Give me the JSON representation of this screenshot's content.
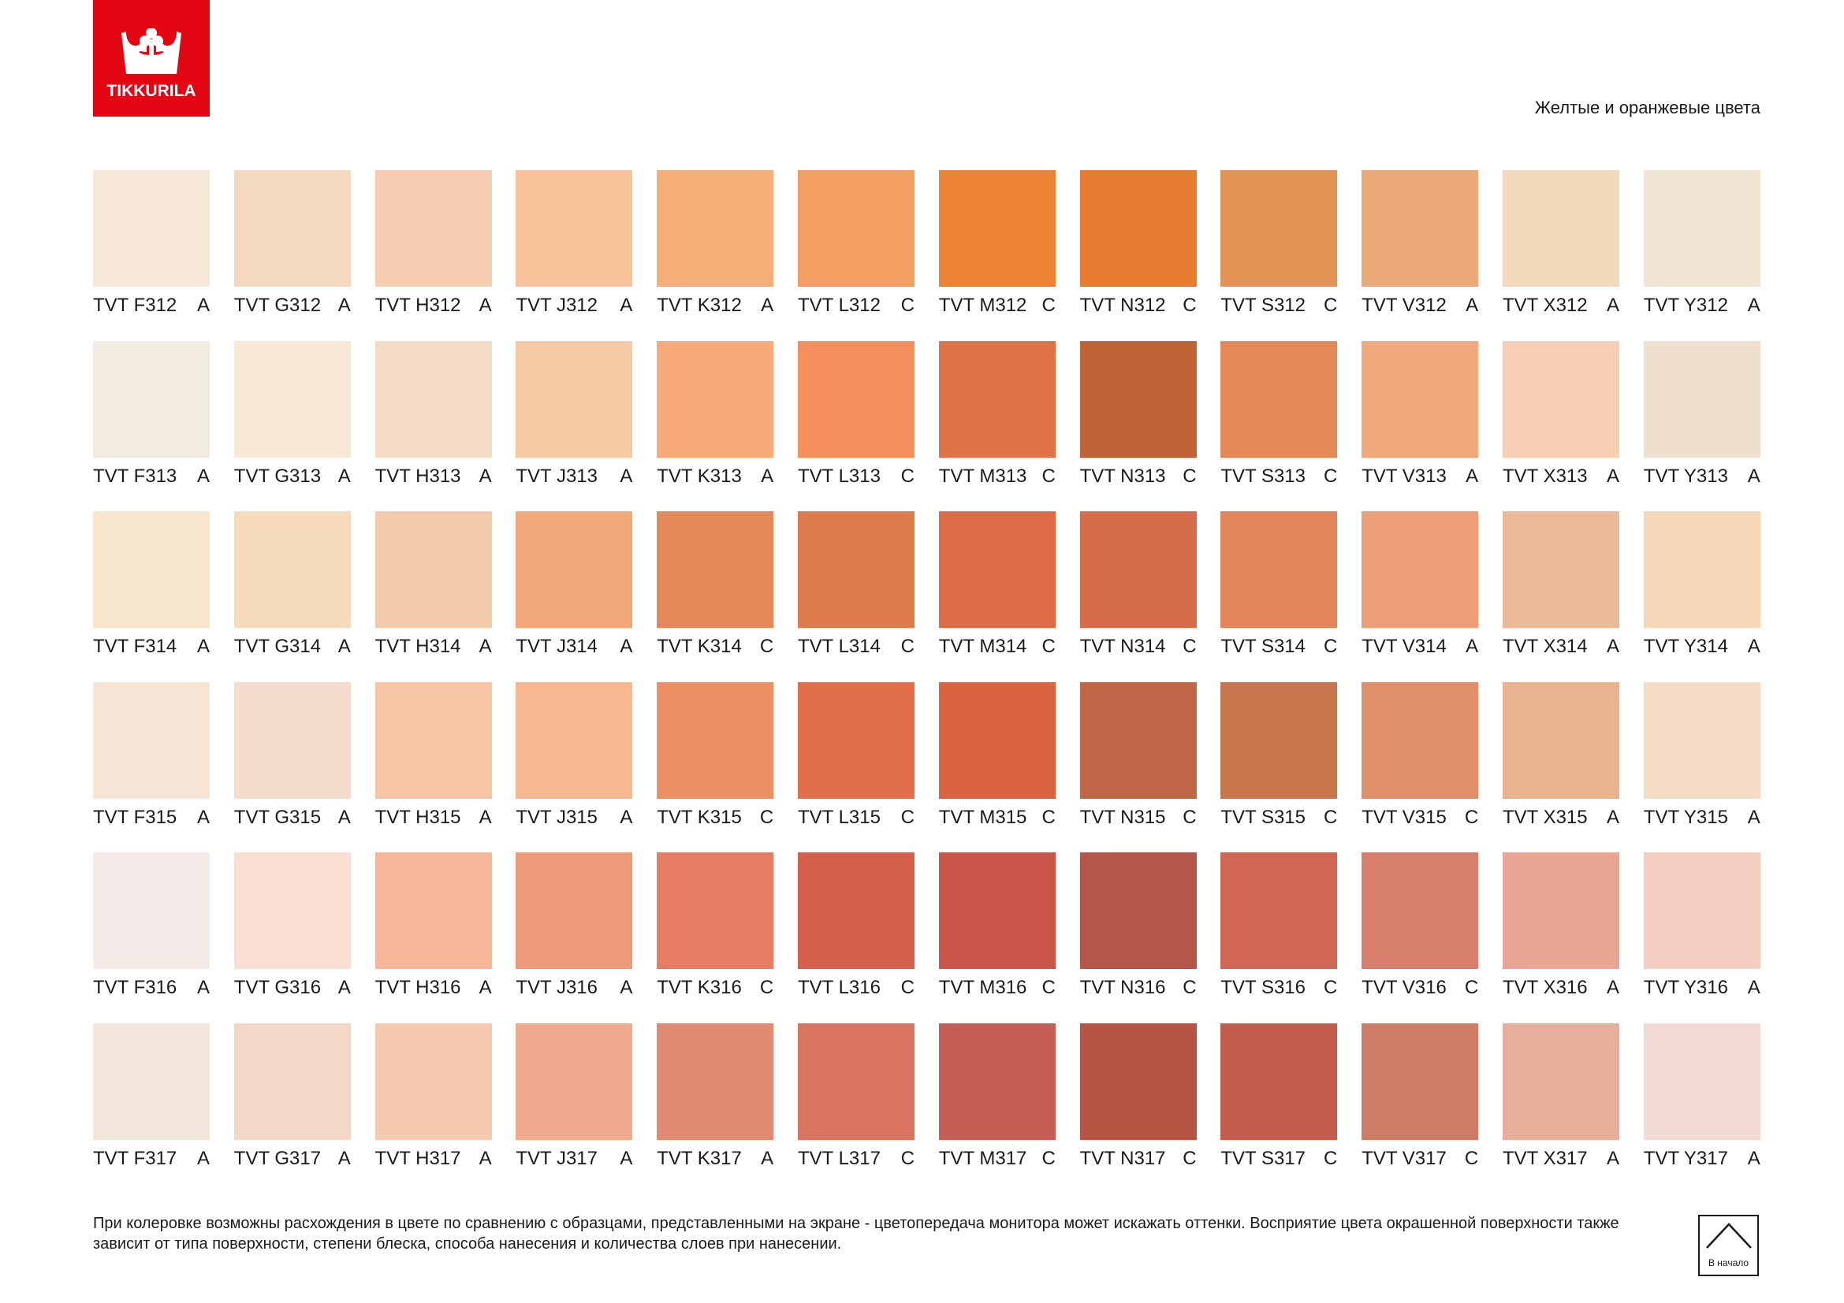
{
  "brand": {
    "name": "TIKKURILA",
    "color": "#e30613"
  },
  "header": {
    "title": "Желтые и оранжевые цвета"
  },
  "rows": [
    {
      "swatches": [
        {
          "code": "TVT F312",
          "base": "A",
          "color": "#f7e7d8"
        },
        {
          "code": "TVT G312",
          "base": "A",
          "color": "#f4d9c0"
        },
        {
          "code": "TVT H312",
          "base": "A",
          "color": "#f6cdb0"
        },
        {
          "code": "TVT J312",
          "base": "A",
          "color": "#f9c29a"
        },
        {
          "code": "TVT K312",
          "base": "A",
          "color": "#f6ae78"
        },
        {
          "code": "TVT L312",
          "base": "C",
          "color": "#f39e62"
        },
        {
          "code": "TVT M312",
          "base": "C",
          "color": "#ec8333"
        },
        {
          "code": "TVT N312",
          "base": "C",
          "color": "#e87b30"
        },
        {
          "code": "TVT S312",
          "base": "C",
          "color": "#e59257"
        },
        {
          "code": "TVT V312",
          "base": "A",
          "color": "#eca978"
        },
        {
          "code": "TVT X312",
          "base": "A",
          "color": "#f3d9bb"
        },
        {
          "code": "TVT Y312",
          "base": "A",
          "color": "#f1e5d4"
        }
      ]
    },
    {
      "swatches": [
        {
          "code": "TVT F313",
          "base": "A",
          "color": "#f2ebdf"
        },
        {
          "code": "TVT G313",
          "base": "A",
          "color": "#f8e9d7"
        },
        {
          "code": "TVT H313",
          "base": "A",
          "color": "#f6dbc4"
        },
        {
          "code": "TVT J313",
          "base": "A",
          "color": "#f7caa3"
        },
        {
          "code": "TVT K313",
          "base": "A",
          "color": "#f8ab78"
        },
        {
          "code": "TVT L313",
          "base": "C",
          "color": "#f5905e"
        },
        {
          "code": "TVT M313",
          "base": "C",
          "color": "#df7448"
        },
        {
          "code": "TVT N313",
          "base": "C",
          "color": "#c06438"
        },
        {
          "code": "TVT S313",
          "base": "C",
          "color": "#e48858"
        },
        {
          "code": "TVT V313",
          "base": "A",
          "color": "#f0a97c"
        },
        {
          "code": "TVT X313",
          "base": "A",
          "color": "#f7cfb5"
        },
        {
          "code": "TVT Y313",
          "base": "A",
          "color": "#efe0cd"
        }
      ]
    },
    {
      "swatches": [
        {
          "code": "TVT F314",
          "base": "A",
          "color": "#f7e5cc"
        },
        {
          "code": "TVT G314",
          "base": "A",
          "color": "#f5dabb"
        },
        {
          "code": "TVT H314",
          "base": "A",
          "color": "#f3cbac"
        },
        {
          "code": "TVT J314",
          "base": "A",
          "color": "#f3a87a"
        },
        {
          "code": "TVT K314",
          "base": "C",
          "color": "#e5895a"
        },
        {
          "code": "TVT L314",
          "base": "C",
          "color": "#df7c4d"
        },
        {
          "code": "TVT M314",
          "base": "C",
          "color": "#dd6b45"
        },
        {
          "code": "TVT N314",
          "base": "C",
          "color": "#d76c4a"
        },
        {
          "code": "TVT S314",
          "base": "C",
          "color": "#e38558"
        },
        {
          "code": "TVT V314",
          "base": "A",
          "color": "#ec9f77"
        },
        {
          "code": "TVT X314",
          "base": "A",
          "color": "#ebb898"
        },
        {
          "code": "TVT Y314",
          "base": "A",
          "color": "#f6d7b8"
        }
      ]
    },
    {
      "swatches": [
        {
          "code": "TVT F315",
          "base": "A",
          "color": "#f7e6d6"
        },
        {
          "code": "TVT G315",
          "base": "A",
          "color": "#f3dccb"
        },
        {
          "code": "TVT H315",
          "base": "A",
          "color": "#f7c5a5"
        },
        {
          "code": "TVT J315",
          "base": "A",
          "color": "#f6b890"
        },
        {
          "code": "TVT K315",
          "base": "C",
          "color": "#ec8f62"
        },
        {
          "code": "TVT L315",
          "base": "C",
          "color": "#e06f4a"
        },
        {
          "code": "TVT M315",
          "base": "C",
          "color": "#d9643f"
        },
        {
          "code": "TVT N315",
          "base": "C",
          "color": "#c06748"
        },
        {
          "code": "TVT S315",
          "base": "C",
          "color": "#c8744d"
        },
        {
          "code": "TVT V315",
          "base": "C",
          "color": "#df9068"
        },
        {
          "code": "TVT X315",
          "base": "A",
          "color": "#e9b38f"
        },
        {
          "code": "TVT Y315",
          "base": "A",
          "color": "#f3dcc3"
        }
      ]
    },
    {
      "swatches": [
        {
          "code": "TVT F316",
          "base": "A",
          "color": "#f5ebe8"
        },
        {
          "code": "TVT G316",
          "base": "A",
          "color": "#f9e0d3"
        },
        {
          "code": "TVT H316",
          "base": "A",
          "color": "#f5b797"
        },
        {
          "code": "TVT J316",
          "base": "A",
          "color": "#ec9a77"
        },
        {
          "code": "TVT K316",
          "base": "C",
          "color": "#e67c62"
        },
        {
          "code": "TVT L316",
          "base": "C",
          "color": "#d45f4a"
        },
        {
          "code": "TVT M316",
          "base": "C",
          "color": "#c85547"
        },
        {
          "code": "TVT N316",
          "base": "C",
          "color": "#b35849"
        },
        {
          "code": "TVT S316",
          "base": "C",
          "color": "#d06754"
        },
        {
          "code": "TVT V316",
          "base": "C",
          "color": "#d8806d"
        },
        {
          "code": "TVT X316",
          "base": "A",
          "color": "#e8a594"
        },
        {
          "code": "TVT Y316",
          "base": "A",
          "color": "#f3cdc0"
        }
      ]
    },
    {
      "swatches": [
        {
          "code": "TVT F317",
          "base": "A",
          "color": "#f3e6da"
        },
        {
          "code": "TVT G317",
          "base": "A",
          "color": "#f3d8c8"
        },
        {
          "code": "TVT H317",
          "base": "A",
          "color": "#f6c9b1"
        },
        {
          "code": "TVT J317",
          "base": "A",
          "color": "#f0aa8e"
        },
        {
          "code": "TVT K317",
          "base": "A",
          "color": "#e08b72"
        },
        {
          "code": "TVT L317",
          "base": "C",
          "color": "#d97460"
        },
        {
          "code": "TVT M317",
          "base": "C",
          "color": "#c55e54"
        },
        {
          "code": "TVT N317",
          "base": "C",
          "color": "#b75444"
        },
        {
          "code": "TVT S317",
          "base": "C",
          "color": "#c45d4b"
        },
        {
          "code": "TVT V317",
          "base": "C",
          "color": "#cd7c66"
        },
        {
          "code": "TVT X317",
          "base": "A",
          "color": "#e7ae9c"
        },
        {
          "code": "TVT Y317",
          "base": "A",
          "color": "#f2dbd4"
        }
      ]
    }
  ],
  "footer": {
    "note": "При колеровке возможны расхождения в цвете по сравнению с образцами, представленными на экране - цветопередача монитора может искажать оттенки. Восприятие цвета окрашенной поверхности также зависит от типа поверхности, степени блеска, способа нанесения и количества слоев при нанесении.",
    "home_label": "В начало",
    "home_icon": "chevron-up-icon"
  }
}
